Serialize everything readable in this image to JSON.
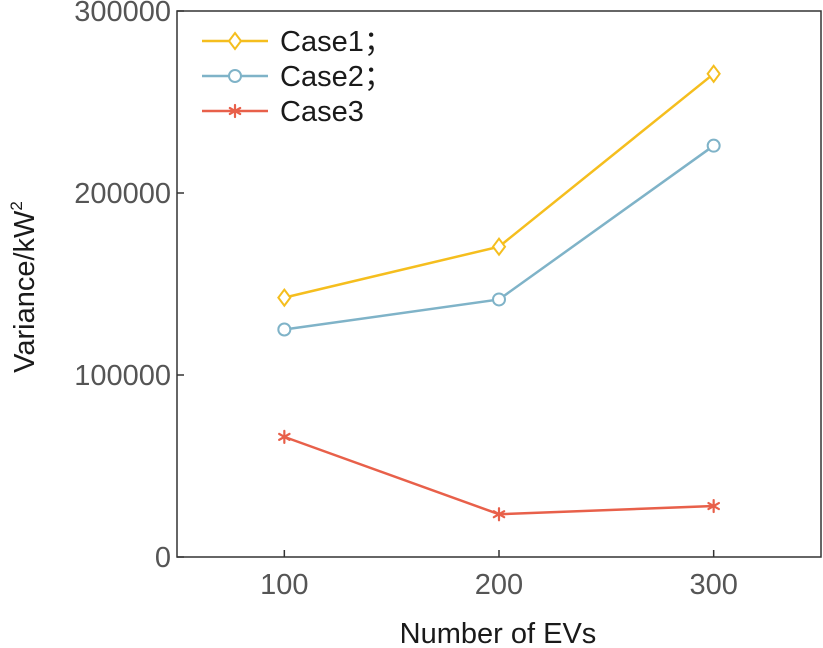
{
  "chart_data": {
    "type": "line",
    "title": "",
    "xlabel": "Number of EVs",
    "ylabel": "Variance/kW",
    "ylabel_superscript": "2",
    "x": [
      100,
      200,
      300
    ],
    "xlim": [
      50,
      350
    ],
    "ylim": [
      0,
      300000
    ],
    "xticks": [
      100,
      200,
      300
    ],
    "yticks": [
      0,
      100000,
      200000,
      300000
    ],
    "xtick_labels": [
      "100",
      "200",
      "300"
    ],
    "ytick_labels": [
      "0",
      "100000",
      "200000",
      "300000"
    ],
    "grid": false,
    "legend_position": "top-left",
    "series": [
      {
        "name": "Case1；",
        "values": [
          142500,
          170500,
          265500
        ],
        "color": "#f5be1e",
        "marker": "diamond"
      },
      {
        "name": "Case2；",
        "values": [
          125000,
          141500,
          226000
        ],
        "color": "#7fb3c8",
        "marker": "circle"
      },
      {
        "name": "Case3",
        "values": [
          66000,
          23500,
          28000
        ],
        "color": "#e8604a",
        "marker": "asterisk"
      }
    ]
  }
}
